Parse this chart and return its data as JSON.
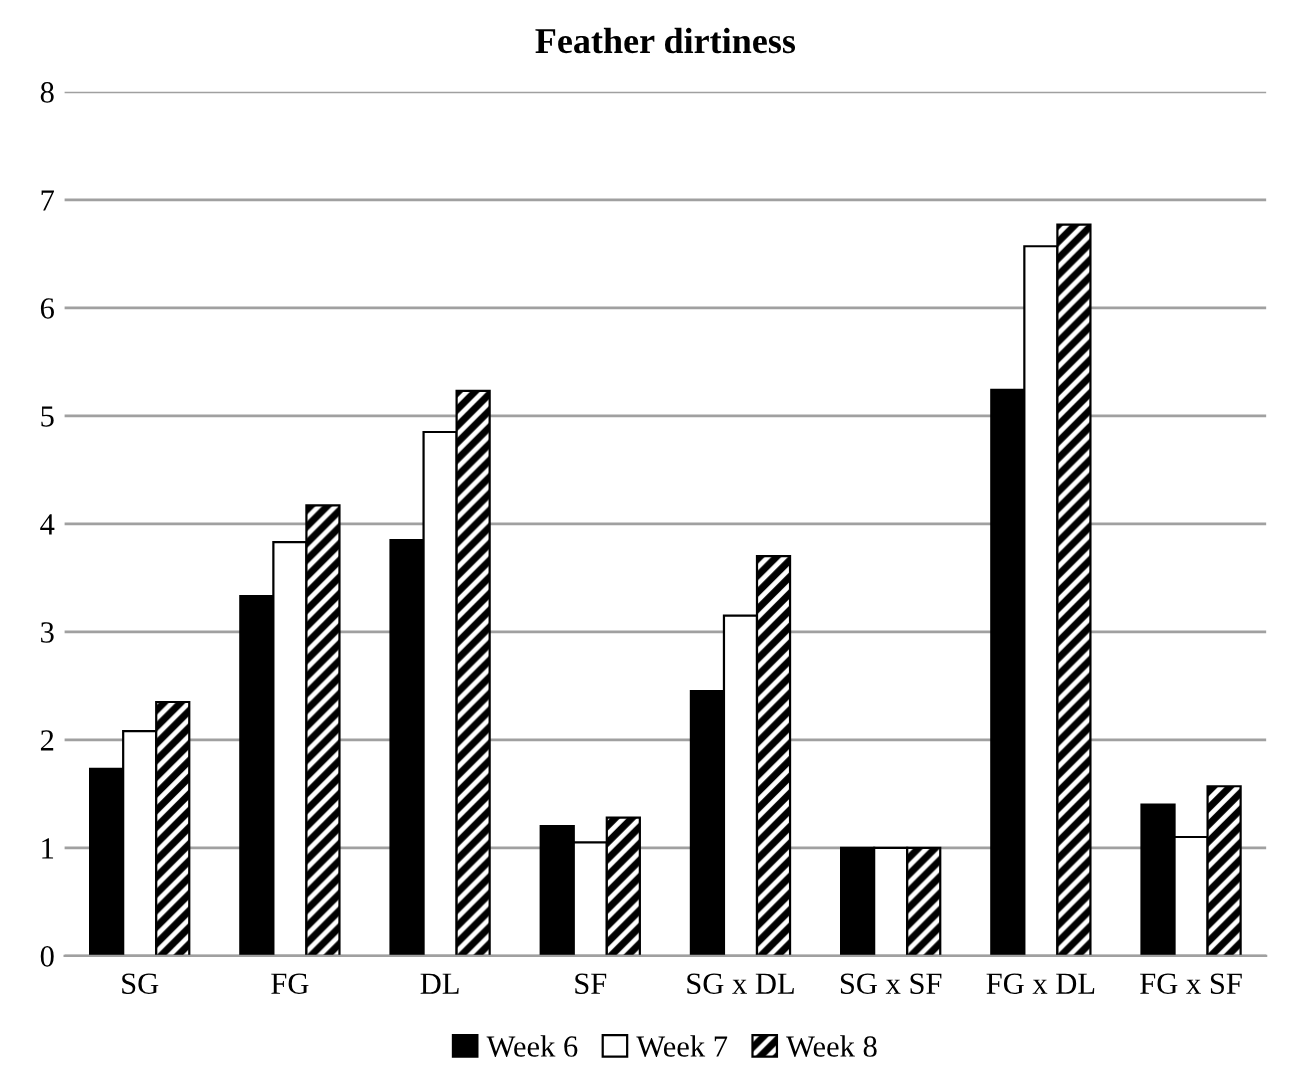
{
  "chart_data": {
    "type": "bar",
    "title": "Feather dirtiness",
    "categories": [
      "SG",
      "FG",
      "DL",
      "SF",
      "SG x DL",
      "SG x SF",
      "FG x DL",
      "FG x SF"
    ],
    "series": [
      {
        "name": "Week 6",
        "color": "#000000",
        "values": [
          1.73,
          3.33,
          3.85,
          1.2,
          2.45,
          1.0,
          5.24,
          1.4
        ]
      },
      {
        "name": "Week 7",
        "color": "#ffffff",
        "values": [
          2.08,
          3.83,
          4.85,
          1.05,
          3.15,
          1.0,
          6.57,
          1.1
        ]
      },
      {
        "name": "Week 8",
        "color": "#000000",
        "values": [
          2.35,
          4.17,
          5.23,
          1.28,
          3.7,
          1.0,
          6.77,
          1.57
        ]
      }
    ],
    "ylim": [
      0,
      8
    ],
    "yticks": [
      0,
      1,
      2,
      3,
      4,
      5,
      6,
      7,
      8
    ],
    "grid": "y",
    "legend": "bottom"
  }
}
